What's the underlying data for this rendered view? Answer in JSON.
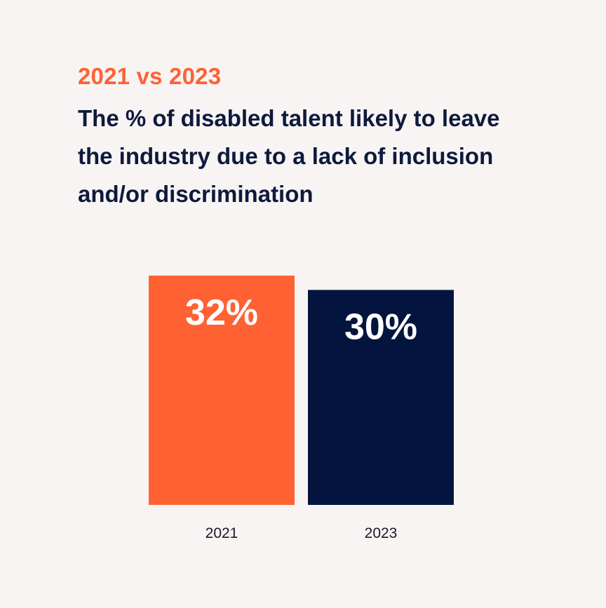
{
  "header": {
    "subtitle": "2021 vs 2023",
    "title": "The % of disabled talent likely to leave the industry due to a lack of inclusion and/or discrimination"
  },
  "colors": {
    "background": "#f8f4f3",
    "accent": "#ff6133",
    "navy": "#03153e"
  },
  "chart_data": {
    "type": "bar",
    "title": "The % of disabled talent likely to leave the industry due to a lack of inclusion and/or discrimination",
    "subtitle": "2021 vs 2023",
    "categories": [
      "2021",
      "2023"
    ],
    "values": [
      32,
      30
    ],
    "labels": [
      "32%",
      "30%"
    ],
    "colors": [
      "#ff6133",
      "#03153e"
    ],
    "unit": "%",
    "grid": false,
    "legend": "none"
  }
}
